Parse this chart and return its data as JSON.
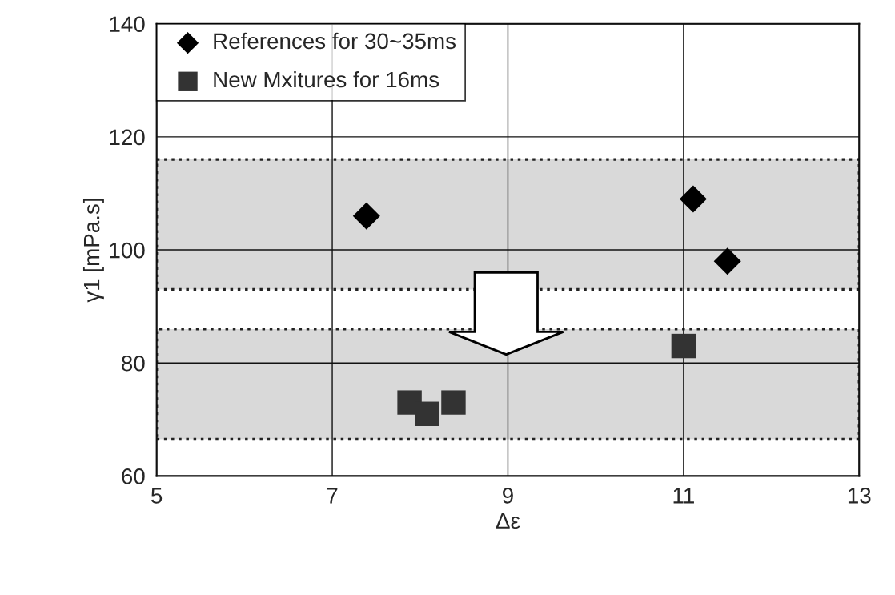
{
  "chart_data": {
    "type": "scatter",
    "xlabel": "Δε",
    "ylabel": "γ1 [mPa.s]",
    "xlim": [
      5,
      13
    ],
    "xticks": [
      5,
      7,
      9,
      11,
      13
    ],
    "ylim": [
      60,
      140
    ],
    "yticks": [
      60,
      80,
      100,
      120,
      140
    ],
    "grid": true,
    "legend": "top left",
    "series": [
      {
        "name": "References for 30~35ms",
        "color": "#000000",
        "marker": "diamond",
        "x": [
          7.39,
          11.11,
          11.5
        ],
        "values": [
          106,
          109,
          98
        ]
      },
      {
        "name": "New Mxitures for 16ms",
        "color": "#333333",
        "marker": "square",
        "x": [
          7.88,
          8.08,
          8.38,
          11.0
        ],
        "values": [
          73,
          71,
          73,
          83
        ]
      }
    ],
    "bands": [
      {
        "axis": "y",
        "from": 93,
        "to": 116,
        "color": "#d9d9d9"
      },
      {
        "axis": "y",
        "from": 66.5,
        "to": 86,
        "color": "#d9d9d9"
      }
    ]
  }
}
